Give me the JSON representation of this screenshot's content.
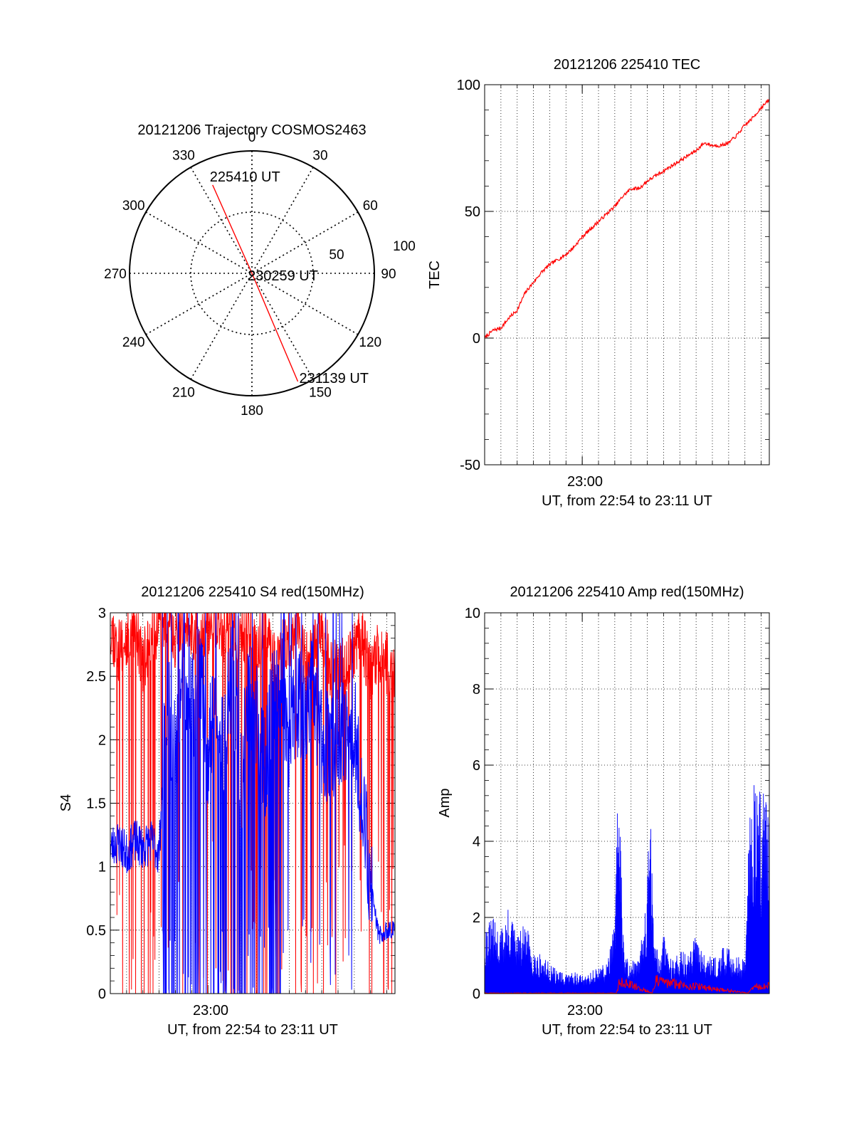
{
  "chart_data": [
    {
      "type": "polar",
      "title": "20121206 Trajectory COSMOS2463",
      "angle_ticks": [
        "0",
        "30",
        "60",
        "90",
        "120",
        "150",
        "180",
        "210",
        "240",
        "270",
        "300",
        "330"
      ],
      "radius_ticks": [
        "50",
        "100"
      ],
      "rmax": 100,
      "trajectory": {
        "color": "#ff0000",
        "points": [
          {
            "az": 336,
            "r": 79,
            "label": "225410 UT"
          },
          {
            "az": 0,
            "r": 0,
            "label": "230259 UT"
          },
          {
            "az": 157,
            "r": 96,
            "label": "231139 UT"
          }
        ]
      }
    },
    {
      "type": "line",
      "title": "20121206 225410 TEC",
      "xlabel": "UT, from 22:54 to 23:11 UT",
      "ylabel": "TEC",
      "x_tick": {
        "label": "23:00",
        "minutes": 6
      },
      "xlim_minutes": [
        0,
        17.5
      ],
      "ylim": [
        -50,
        100
      ],
      "yticks": [
        -50,
        0,
        50,
        100
      ],
      "grid": true,
      "series": [
        {
          "color": "#ff0000",
          "x": [
            0,
            0.5,
            1.0,
            1.5,
            2.0,
            2.5,
            3.0,
            3.5,
            4.0,
            4.5,
            5.0,
            5.5,
            6.0,
            6.5,
            7.0,
            7.5,
            8.0,
            8.5,
            9.0,
            9.5,
            10.0,
            10.5,
            11.0,
            11.5,
            12.0,
            12.5,
            13.0,
            13.5,
            14.0,
            14.5,
            15.0,
            15.5,
            16.0,
            16.5,
            17.0,
            17.5
          ],
          "y": [
            0,
            3,
            4,
            8,
            11,
            18,
            22,
            26,
            29,
            31,
            33,
            36,
            40,
            43,
            46,
            49,
            52,
            56,
            59,
            59,
            62,
            64,
            66,
            68,
            70,
            72,
            74,
            77,
            76,
            76,
            77,
            80,
            84,
            87,
            91,
            94
          ]
        }
      ]
    },
    {
      "type": "line",
      "title": "20121206 225410 S4 red(150MHz)",
      "xlabel": "UT, from 22:54 to 23:11 UT",
      "ylabel": "S4",
      "x_tick": {
        "label": "23:00",
        "minutes": 6
      },
      "xlim_minutes": [
        0,
        17.5
      ],
      "ylim": [
        0,
        3
      ],
      "yticks": [
        "0",
        "0.5",
        "1",
        "1.5",
        "2",
        "2.5",
        "3"
      ],
      "grid": true,
      "series": [
        {
          "color": "#ff0000",
          "x": [
            0,
            0.5,
            1.0,
            1.5,
            2.0,
            2.5,
            3.0,
            3.5,
            4.0,
            4.5,
            5.0,
            5.5,
            6.0,
            6.5,
            7.0,
            7.5,
            8.0,
            8.5,
            9.0,
            9.5,
            10.0,
            10.5,
            11.0,
            11.5,
            12.0,
            12.5,
            13.0,
            13.5,
            14.0,
            14.5,
            15.0,
            15.5,
            16.0,
            16.5,
            17.0,
            17.5
          ],
          "y": [
            2.9,
            2.7,
            2.8,
            2.9,
            2.6,
            2.8,
            2.9,
            2.9,
            2.8,
            2.9,
            2.9,
            2.8,
            2.9,
            2.9,
            2.8,
            2.9,
            2.8,
            2.9,
            2.7,
            2.9,
            2.6,
            2.7,
            2.8,
            2.9,
            2.6,
            2.7,
            2.9,
            2.6,
            2.5,
            2.6,
            2.7,
            2.8,
            2.5,
            2.7,
            2.6,
            2.5
          ]
        },
        {
          "color": "#0000ff",
          "x": [
            0,
            0.5,
            1.0,
            1.5,
            2.0,
            2.5,
            3.0,
            3.5,
            4.0,
            4.5,
            5.0,
            5.5,
            6.0,
            6.5,
            7.0,
            7.5,
            8.0,
            8.5,
            9.0,
            9.5,
            10.0,
            10.5,
            11.0,
            11.5,
            12.0,
            12.5,
            13.0,
            13.5,
            14.0,
            14.5,
            15.0,
            15.5,
            16.0,
            16.5,
            17.0,
            17.5
          ],
          "y": [
            1.15,
            1.2,
            1.1,
            1.2,
            1.15,
            1.2,
            1.1,
            2.4,
            1.8,
            2.6,
            2.2,
            2.6,
            1.9,
            2.5,
            2.0,
            2.6,
            1.6,
            2.4,
            2.2,
            1.8,
            2.3,
            2.5,
            2.0,
            2.3,
            2.2,
            2.4,
            2.0,
            1.9,
            2.1,
            1.95,
            2.1,
            1.5,
            0.9,
            0.45,
            0.5,
            0.5
          ]
        }
      ]
    },
    {
      "type": "line",
      "title": "20121206 225410 Amp red(150MHz)",
      "xlabel": "UT, from 22:54 to 23:11 UT",
      "ylabel": "Amp",
      "x_tick": {
        "label": "23:00",
        "minutes": 6
      },
      "xlim_minutes": [
        0,
        17.5
      ],
      "ylim": [
        0,
        10
      ],
      "yticks": [
        0,
        2,
        4,
        6,
        8,
        10
      ],
      "grid": true,
      "series": [
        {
          "color": "#0000ff",
          "x": [
            0,
            0.5,
            1.0,
            1.5,
            2.0,
            2.5,
            3.0,
            3.5,
            4.0,
            4.5,
            5.0,
            5.5,
            6.0,
            6.5,
            7.0,
            7.5,
            8.0,
            8.2,
            8.6,
            9.0,
            9.5,
            10.0,
            10.2,
            10.4,
            10.8,
            11.0,
            11.5,
            12.0,
            12.5,
            13.0,
            13.5,
            14.0,
            14.5,
            15.0,
            15.5,
            16.0,
            16.3,
            16.5,
            17.0,
            17.5
          ],
          "y": [
            1.8,
            2.0,
            1.7,
            2.3,
            1.5,
            1.9,
            1.2,
            1.0,
            0.8,
            0.6,
            0.5,
            0.6,
            0.5,
            0.6,
            0.7,
            0.8,
            1.9,
            5.9,
            1.0,
            0.9,
            0.9,
            3.0,
            5.4,
            1.4,
            1.0,
            1.6,
            0.9,
            1.2,
            1.0,
            1.6,
            1.2,
            0.9,
            1.2,
            1.2,
            1.0,
            0.9,
            5.3,
            6.3,
            5.5,
            5.8
          ]
        },
        {
          "color": "#ff0000",
          "x": [
            0,
            8.1,
            8.3,
            10.3,
            10.5,
            16.2,
            16.6,
            17.0,
            17.5
          ],
          "y": [
            0.02,
            0.02,
            0.5,
            0.02,
            0.5,
            0.02,
            0.3,
            0.25,
            0.3
          ]
        }
      ]
    }
  ]
}
